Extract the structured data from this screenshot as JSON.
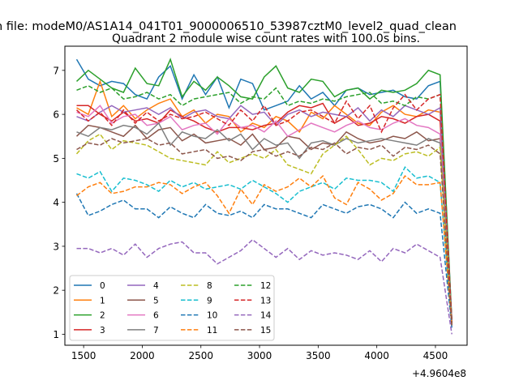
{
  "figure": {
    "suptitle": "n file: modeM0/AS1A14_041T01_9000006510_53987cztM0_level2_quad_clean",
    "title": "Quadrant 2 module wise count rates with 100.0s bins.",
    "offset_label": "+4.9604e8"
  },
  "chart_data": {
    "type": "line",
    "title": "Quadrant 2 module wise count rates with 100.0s bins.",
    "xlabel": "",
    "ylabel": "",
    "x_offset_text": "+4.9604e8",
    "xlim": [
      1340,
      4770
    ],
    "ylim": [
      0.75,
      7.55
    ],
    "xticks": [
      1500,
      2000,
      2500,
      3000,
      3500,
      4000,
      4500
    ],
    "yticks": [
      1,
      2,
      3,
      4,
      5,
      6,
      7
    ],
    "grid": false,
    "legend": {
      "placement": "lower-left",
      "columns": 4
    },
    "x": [
      1440,
      1540,
      1640,
      1740,
      1840,
      1940,
      2040,
      2140,
      2240,
      2340,
      2440,
      2540,
      2640,
      2740,
      2840,
      2940,
      3040,
      3140,
      3240,
      3340,
      3440,
      3540,
      3640,
      3740,
      3840,
      3940,
      4040,
      4140,
      4240,
      4340,
      4440,
      4540,
      4640
    ],
    "series": [
      {
        "name": "0",
        "color": "#1f77b4",
        "dash": "solid",
        "values": [
          7.25,
          6.8,
          6.65,
          6.75,
          6.7,
          6.45,
          6.35,
          6.85,
          7.1,
          6.35,
          6.9,
          6.45,
          6.85,
          6.15,
          6.8,
          6.7,
          6.1,
          6.2,
          6.3,
          6.65,
          6.35,
          6.5,
          6.2,
          6.55,
          6.6,
          6.45,
          6.5,
          6.55,
          6.4,
          6.35,
          6.65,
          6.75,
          1.3
        ]
      },
      {
        "name": "1",
        "color": "#ff7f0e",
        "dash": "solid",
        "values": [
          6.15,
          6.0,
          6.75,
          5.95,
          6.2,
          5.9,
          6.1,
          6.25,
          6.35,
          5.95,
          6.1,
          5.8,
          6.0,
          5.95,
          5.6,
          5.8,
          5.7,
          5.95,
          5.85,
          5.6,
          6.05,
          5.9,
          6.2,
          6.0,
          5.8,
          5.75,
          6.05,
          6.2,
          6.0,
          5.95,
          6.1,
          6.05,
          1.25
        ]
      },
      {
        "name": "2",
        "color": "#2ca02c",
        "dash": "solid",
        "values": [
          6.75,
          7.0,
          6.8,
          6.6,
          6.5,
          7.05,
          6.7,
          6.65,
          7.25,
          6.4,
          6.75,
          6.55,
          6.85,
          6.65,
          6.4,
          6.35,
          6.85,
          7.1,
          6.6,
          6.5,
          6.8,
          6.75,
          6.4,
          6.55,
          6.6,
          6.35,
          6.55,
          6.5,
          6.55,
          6.7,
          7.0,
          6.9,
          1.3
        ]
      },
      {
        "name": "3",
        "color": "#d62728",
        "dash": "solid",
        "values": [
          6.2,
          6.2,
          6.0,
          5.85,
          6.05,
          5.85,
          5.9,
          5.8,
          6.1,
          5.95,
          5.85,
          5.7,
          5.6,
          5.7,
          5.7,
          5.65,
          5.75,
          5.8,
          6.05,
          6.2,
          6.15,
          6.25,
          5.8,
          5.95,
          5.75,
          5.8,
          5.95,
          5.9,
          5.8,
          5.95,
          6.0,
          5.85,
          1.3
        ]
      },
      {
        "name": "4",
        "color": "#9467bd",
        "dash": "solid",
        "values": [
          5.95,
          5.85,
          6.05,
          6.2,
          6.05,
          6.1,
          6.15,
          6.0,
          6.15,
          5.9,
          6.05,
          6.1,
          5.95,
          5.9,
          6.2,
          6.0,
          6.05,
          5.75,
          6.0,
          6.1,
          5.95,
          6.05,
          6.0,
          5.95,
          6.15,
          5.85,
          6.1,
          5.95,
          6.2,
          6.1,
          6.0,
          6.15,
          1.25
        ]
      },
      {
        "name": "5",
        "color": "#8c564b",
        "dash": "solid",
        "values": [
          5.5,
          5.75,
          5.7,
          5.6,
          5.5,
          5.75,
          5.45,
          5.65,
          5.7,
          5.4,
          5.55,
          5.35,
          5.4,
          5.45,
          5.3,
          5.55,
          5.2,
          5.25,
          5.5,
          5.45,
          5.2,
          5.35,
          5.3,
          5.6,
          5.45,
          5.35,
          5.4,
          5.5,
          5.45,
          5.6,
          5.4,
          5.45,
          1.2
        ]
      },
      {
        "name": "6",
        "color": "#e377c2",
        "dash": "solid",
        "values": [
          6.05,
          5.95,
          6.2,
          5.8,
          5.95,
          6.0,
          5.75,
          5.8,
          5.95,
          5.65,
          5.75,
          5.8,
          5.55,
          5.9,
          5.7,
          5.75,
          5.6,
          5.85,
          5.5,
          5.65,
          5.8,
          5.7,
          5.6,
          5.75,
          5.85,
          5.7,
          5.65,
          5.8,
          5.9,
          5.75,
          5.7,
          5.55,
          1.2
        ]
      },
      {
        "name": "7",
        "color": "#7f7f7f",
        "dash": "solid",
        "values": [
          5.6,
          5.5,
          5.7,
          5.65,
          5.75,
          5.7,
          5.55,
          5.8,
          5.3,
          5.6,
          5.5,
          5.45,
          5.65,
          5.4,
          5.55,
          5.2,
          5.45,
          5.3,
          5.35,
          5.0,
          5.35,
          5.4,
          5.3,
          5.45,
          5.35,
          5.4,
          5.45,
          5.4,
          5.35,
          5.3,
          5.45,
          5.35,
          1.2
        ]
      },
      {
        "name": "8",
        "color": "#bcbd22",
        "dash": "dashed",
        "values": [
          5.1,
          5.4,
          5.55,
          5.2,
          5.4,
          5.35,
          5.3,
          5.15,
          5.0,
          4.95,
          4.9,
          4.85,
          5.15,
          4.9,
          5.0,
          5.1,
          5.0,
          5.2,
          4.85,
          4.75,
          4.65,
          5.1,
          5.3,
          5.5,
          5.2,
          4.85,
          5.0,
          4.95,
          5.1,
          5.15,
          5.05,
          5.25,
          1.2
        ]
      },
      {
        "name": "9",
        "color": "#17becf",
        "dash": "dashed",
        "values": [
          4.65,
          4.55,
          4.7,
          4.25,
          4.55,
          4.5,
          4.4,
          4.25,
          4.5,
          4.35,
          4.45,
          4.3,
          4.35,
          4.4,
          4.3,
          4.5,
          4.35,
          4.2,
          4.0,
          4.25,
          4.35,
          4.45,
          4.3,
          4.55,
          4.5,
          4.5,
          4.45,
          4.25,
          4.8,
          4.55,
          4.6,
          4.45,
          1.2
        ]
      },
      {
        "name": "10",
        "color": "#1f77b4",
        "dash": "dashed",
        "values": [
          4.2,
          3.7,
          3.8,
          3.95,
          4.05,
          3.85,
          3.85,
          3.65,
          3.9,
          3.75,
          3.65,
          3.95,
          3.75,
          3.7,
          3.8,
          3.65,
          3.95,
          3.85,
          3.85,
          3.75,
          3.65,
          3.95,
          3.85,
          3.75,
          3.9,
          3.95,
          3.85,
          3.65,
          4.0,
          3.75,
          3.85,
          3.75,
          1.15
        ]
      },
      {
        "name": "11",
        "color": "#ff7f0e",
        "dash": "dashed",
        "values": [
          4.15,
          4.35,
          4.45,
          4.2,
          4.25,
          4.35,
          4.35,
          4.45,
          4.4,
          4.2,
          4.35,
          4.45,
          4.15,
          3.75,
          4.3,
          3.95,
          4.4,
          4.25,
          4.35,
          4.55,
          4.35,
          4.6,
          4.1,
          3.95,
          4.45,
          4.3,
          4.05,
          4.2,
          4.6,
          4.4,
          4.4,
          4.45,
          1.2
        ]
      },
      {
        "name": "12",
        "color": "#2ca02c",
        "dash": "dashed",
        "values": [
          6.55,
          6.65,
          6.5,
          6.6,
          6.35,
          6.4,
          6.5,
          6.35,
          6.45,
          6.2,
          6.35,
          6.4,
          6.45,
          6.5,
          6.25,
          6.4,
          6.35,
          6.6,
          6.2,
          6.3,
          6.25,
          6.35,
          6.3,
          6.4,
          6.45,
          6.5,
          6.25,
          6.3,
          6.2,
          6.4,
          6.35,
          6.45,
          1.25
        ]
      },
      {
        "name": "13",
        "color": "#d62728",
        "dash": "dashed",
        "values": [
          6.1,
          5.85,
          6.05,
          5.75,
          6.1,
          5.8,
          6.05,
          5.85,
          6.0,
          5.9,
          5.95,
          6.05,
          5.9,
          5.75,
          6.1,
          5.85,
          6.2,
          5.75,
          5.85,
          6.05,
          6.1,
          5.95,
          5.8,
          6.3,
          5.9,
          6.2,
          5.6,
          6.15,
          6.45,
          6.1,
          6.35,
          6.45,
          1.25
        ]
      },
      {
        "name": "14",
        "color": "#9467bd",
        "dash": "dashed",
        "values": [
          2.95,
          2.95,
          2.85,
          2.95,
          2.8,
          3.05,
          2.75,
          2.95,
          3.05,
          3.1,
          2.85,
          2.85,
          2.6,
          2.75,
          2.9,
          3.15,
          2.95,
          2.75,
          2.95,
          2.7,
          2.9,
          2.8,
          2.85,
          2.8,
          2.7,
          2.9,
          2.65,
          2.95,
          2.85,
          3.05,
          2.9,
          2.75,
          1.0
        ]
      },
      {
        "name": "15",
        "color": "#8c564b",
        "dash": "dashed",
        "values": [
          5.2,
          5.35,
          5.3,
          5.45,
          5.35,
          5.4,
          5.45,
          5.3,
          5.35,
          5.1,
          5.15,
          5.2,
          5.0,
          5.05,
          4.95,
          5.15,
          5.2,
          5.05,
          5.15,
          5.05,
          5.25,
          5.2,
          5.35,
          5.1,
          5.25,
          5.2,
          5.3,
          5.05,
          5.25,
          5.2,
          5.3,
          5.1,
          1.2
        ]
      }
    ]
  }
}
